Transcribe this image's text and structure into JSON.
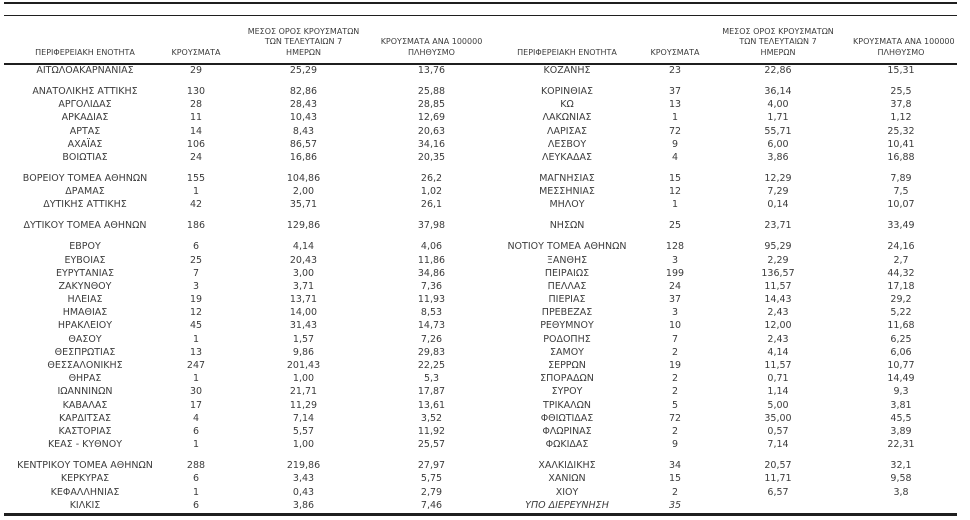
{
  "colors": {
    "text": "#3c3c3c",
    "line": "#1f1f1f",
    "background": "#ffffff"
  },
  "table": {
    "columns": [
      {
        "id": "region",
        "lines": [
          "ΠΕΡΙΦΕΡΕΙΑΚΗ ΕΝΟΤΗΤΑ"
        ]
      },
      {
        "id": "cases",
        "lines": [
          "ΚΡΟΥΣΜΑΤΑ"
        ]
      },
      {
        "id": "avg7",
        "lines": [
          "ΜΕΣΟΣ ΟΡΟΣ ΚΡΟΥΣΜΑΤΩΝ",
          "ΤΩΝ ΤΕΛΕΥΤΑΙΩΝ 7",
          "ΗΜΕΡΩΝ"
        ]
      },
      {
        "id": "per100k",
        "lines": [
          "ΚΡΟΥΣΜΑΤΑ ΑΝΑ 100000",
          "ΠΛΗΘΥΣΜΟ"
        ]
      }
    ],
    "left_groups": [
      [
        [
          "ΑΙΤΩΛΟΑΚΑΡΝΑΝΙΑΣ",
          "29",
          "25,29",
          "13,76"
        ]
      ],
      [
        [
          "ΑΝΑΤΟΛΙΚΗΣ ΑΤΤΙΚΗΣ",
          "130",
          "82,86",
          "25,88"
        ],
        [
          "ΑΡΓΟΛΙΔΑΣ",
          "28",
          "28,43",
          "28,85"
        ],
        [
          "ΑΡΚΑΔΙΑΣ",
          "11",
          "10,43",
          "12,69"
        ],
        [
          "ΑΡΤΑΣ",
          "14",
          "8,43",
          "20,63"
        ],
        [
          "ΑΧΑΪΑΣ",
          "106",
          "86,57",
          "34,16"
        ],
        [
          "ΒΟΙΩΤΙΑΣ",
          "24",
          "16,86",
          "20,35"
        ]
      ],
      [
        [
          "ΒΟΡΕΙΟΥ ΤΟΜΕΑ ΑΘΗΝΩΝ",
          "155",
          "104,86",
          "26,2"
        ],
        [
          "ΔΡΑΜΑΣ",
          "1",
          "2,00",
          "1,02"
        ],
        [
          "ΔΥΤΙΚΗΣ ΑΤΤΙΚΗΣ",
          "42",
          "35,71",
          "26,1"
        ]
      ],
      [
        [
          "ΔΥΤΙΚΟΥ ΤΟΜΕΑ ΑΘΗΝΩΝ",
          "186",
          "129,86",
          "37,98"
        ]
      ],
      [
        [
          "ΕΒΡΟΥ",
          "6",
          "4,14",
          "4,06"
        ],
        [
          "ΕΥΒΟΙΑΣ",
          "25",
          "20,43",
          "11,86"
        ],
        [
          "ΕΥΡΥΤΑΝΙΑΣ",
          "7",
          "3,00",
          "34,86"
        ],
        [
          "ΖΑΚΥΝΘΟΥ",
          "3",
          "3,71",
          "7,36"
        ],
        [
          "ΗΛΕΙΑΣ",
          "19",
          "13,71",
          "11,93"
        ],
        [
          "ΗΜΑΘΙΑΣ",
          "12",
          "14,00",
          "8,53"
        ],
        [
          "ΗΡΑΚΛΕΙΟΥ",
          "45",
          "31,43",
          "14,73"
        ],
        [
          "ΘΑΣΟΥ",
          "1",
          "1,57",
          "7,26"
        ],
        [
          "ΘΕΣΠΡΩΤΙΑΣ",
          "13",
          "9,86",
          "29,83"
        ],
        [
          "ΘΕΣΣΑΛΟΝΙΚΗΣ",
          "247",
          "201,43",
          "22,25"
        ],
        [
          "ΘΗΡΑΣ",
          "1",
          "1,00",
          "5,3"
        ],
        [
          "ΙΩΑΝΝΙΝΩΝ",
          "30",
          "21,71",
          "17,87"
        ],
        [
          "ΚΑΒΑΛΑΣ",
          "17",
          "11,29",
          "13,61"
        ],
        [
          "ΚΑΡΔΙΤΣΑΣ",
          "4",
          "7,14",
          "3,52"
        ],
        [
          "ΚΑΣΤΟΡΙΑΣ",
          "6",
          "5,57",
          "11,92"
        ],
        [
          "ΚΕΑΣ - ΚΥΘΝΟΥ",
          "1",
          "1,00",
          "25,57"
        ]
      ],
      [
        [
          "ΚΕΝΤΡΙΚΟΥ ΤΟΜΕΑ ΑΘΗΝΩΝ",
          "288",
          "219,86",
          "27,97"
        ],
        [
          "ΚΕΡΚΥΡΑΣ",
          "6",
          "3,43",
          "5,75"
        ],
        [
          "ΚΕΦΑΛΛΗΝΙΑΣ",
          "1",
          "0,43",
          "2,79"
        ],
        [
          "ΚΙΛΚΙΣ",
          "6",
          "3,86",
          "7,46"
        ]
      ]
    ],
    "right_groups": [
      [
        [
          "ΚΟΖΑΝΗΣ",
          "23",
          "22,86",
          "15,31"
        ]
      ],
      [
        [
          "ΚΟΡΙΝΘΙΑΣ",
          "37",
          "36,14",
          "25,5"
        ],
        [
          "ΚΩ",
          "13",
          "4,00",
          "37,8"
        ],
        [
          "ΛΑΚΩΝΙΑΣ",
          "1",
          "1,71",
          "1,12"
        ],
        [
          "ΛΑΡΙΣΑΣ",
          "72",
          "55,71",
          "25,32"
        ],
        [
          "ΛΕΣΒΟΥ",
          "9",
          "6,00",
          "10,41"
        ],
        [
          "ΛΕΥΚΑΔΑΣ",
          "4",
          "3,86",
          "16,88"
        ]
      ],
      [
        [
          "ΜΑΓΝΗΣΙΑΣ",
          "15",
          "12,29",
          "7,89"
        ],
        [
          "ΜΕΣΣΗΝΙΑΣ",
          "12",
          "7,29",
          "7,5"
        ],
        [
          "ΜΗΛΟΥ",
          "1",
          "0,14",
          "10,07"
        ]
      ],
      [
        [
          "ΝΗΣΩΝ",
          "25",
          "23,71",
          "33,49"
        ]
      ],
      [
        [
          "ΝΟΤΙΟΥ ΤΟΜΕΑ ΑΘΗΝΩΝ",
          "128",
          "95,29",
          "24,16"
        ],
        [
          "ΞΑΝΘΗΣ",
          "3",
          "2,29",
          "2,7"
        ],
        [
          "ΠΕΙΡΑΙΩΣ",
          "199",
          "136,57",
          "44,32"
        ],
        [
          "ΠΕΛΛΑΣ",
          "24",
          "11,57",
          "17,18"
        ],
        [
          "ΠΙΕΡΙΑΣ",
          "37",
          "14,43",
          "29,2"
        ],
        [
          "ΠΡΕΒΕΖΑΣ",
          "3",
          "2,43",
          "5,22"
        ],
        [
          "ΡΕΘΥΜΝΟΥ",
          "10",
          "12,00",
          "11,68"
        ],
        [
          "ΡΟΔΟΠΗΣ",
          "7",
          "2,43",
          "6,25"
        ],
        [
          "ΣΑΜΟΥ",
          "2",
          "4,14",
          "6,06"
        ],
        [
          "ΣΕΡΡΩΝ",
          "19",
          "11,57",
          "10,77"
        ],
        [
          "ΣΠΟΡΑΔΩΝ",
          "2",
          "0,71",
          "14,49"
        ],
        [
          "ΣΥΡΟΥ",
          "2",
          "1,14",
          "9,3"
        ],
        [
          "ΤΡΙΚΑΛΩΝ",
          "5",
          "5,00",
          "3,81"
        ],
        [
          "ΦΘΙΩΤΙΔΑΣ",
          "72",
          "35,00",
          "45,5"
        ],
        [
          "ΦΛΩΡΙΝΑΣ",
          "2",
          "0,57",
          "3,89"
        ],
        [
          "ΦΩΚΙΔΑΣ",
          "9",
          "7,14",
          "22,31"
        ]
      ],
      [
        [
          "ΧΑΛΚΙΔΙΚΗΣ",
          "34",
          "20,57",
          "32,1"
        ],
        [
          "ΧΑΝΙΩΝ",
          "15",
          "11,71",
          "9,58"
        ],
        [
          "ΧΙΟΥ",
          "2",
          "6,57",
          "3,8"
        ],
        [
          "ΥΠΟ ΔΙΕΡΕΥΝΗΣΗ",
          "35",
          "",
          "",
          "italic"
        ]
      ]
    ]
  }
}
